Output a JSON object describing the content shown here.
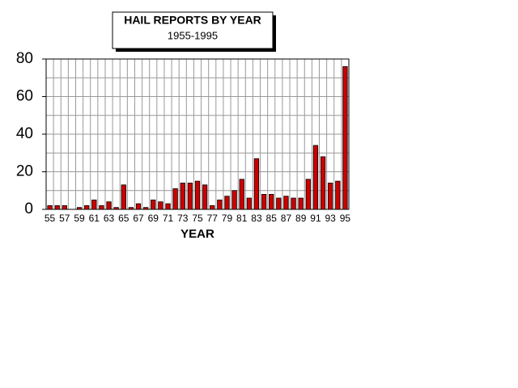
{
  "chart_data": {
    "type": "bar",
    "title": "HAIL REPORTS BY YEAR",
    "subtitle": "1955-1995",
    "x_label": "YEAR",
    "categories": [
      "55",
      null,
      "57",
      null,
      "59",
      null,
      "61",
      null,
      "63",
      null,
      "65",
      null,
      "67",
      null,
      "69",
      null,
      "71",
      null,
      "73",
      null,
      "75",
      null,
      "77",
      null,
      "79",
      null,
      "81",
      null,
      "83",
      null,
      "85",
      null,
      "87",
      null,
      "89",
      null,
      "91",
      null,
      "93",
      null,
      "95"
    ],
    "values": [
      2,
      2,
      2,
      0,
      1,
      2,
      5,
      2,
      4,
      1,
      13,
      1,
      3,
      1,
      5,
      4,
      3,
      11,
      14,
      14,
      15,
      13,
      2,
      5,
      7,
      10,
      16,
      6,
      27,
      8,
      8,
      6,
      7,
      6,
      6,
      16,
      34,
      28,
      14,
      15,
      76
    ],
    "color": "#cc0000",
    "ylim": [
      0,
      80
    ],
    "yticks": [
      0,
      20,
      40,
      60,
      80
    ],
    "grid": true
  }
}
